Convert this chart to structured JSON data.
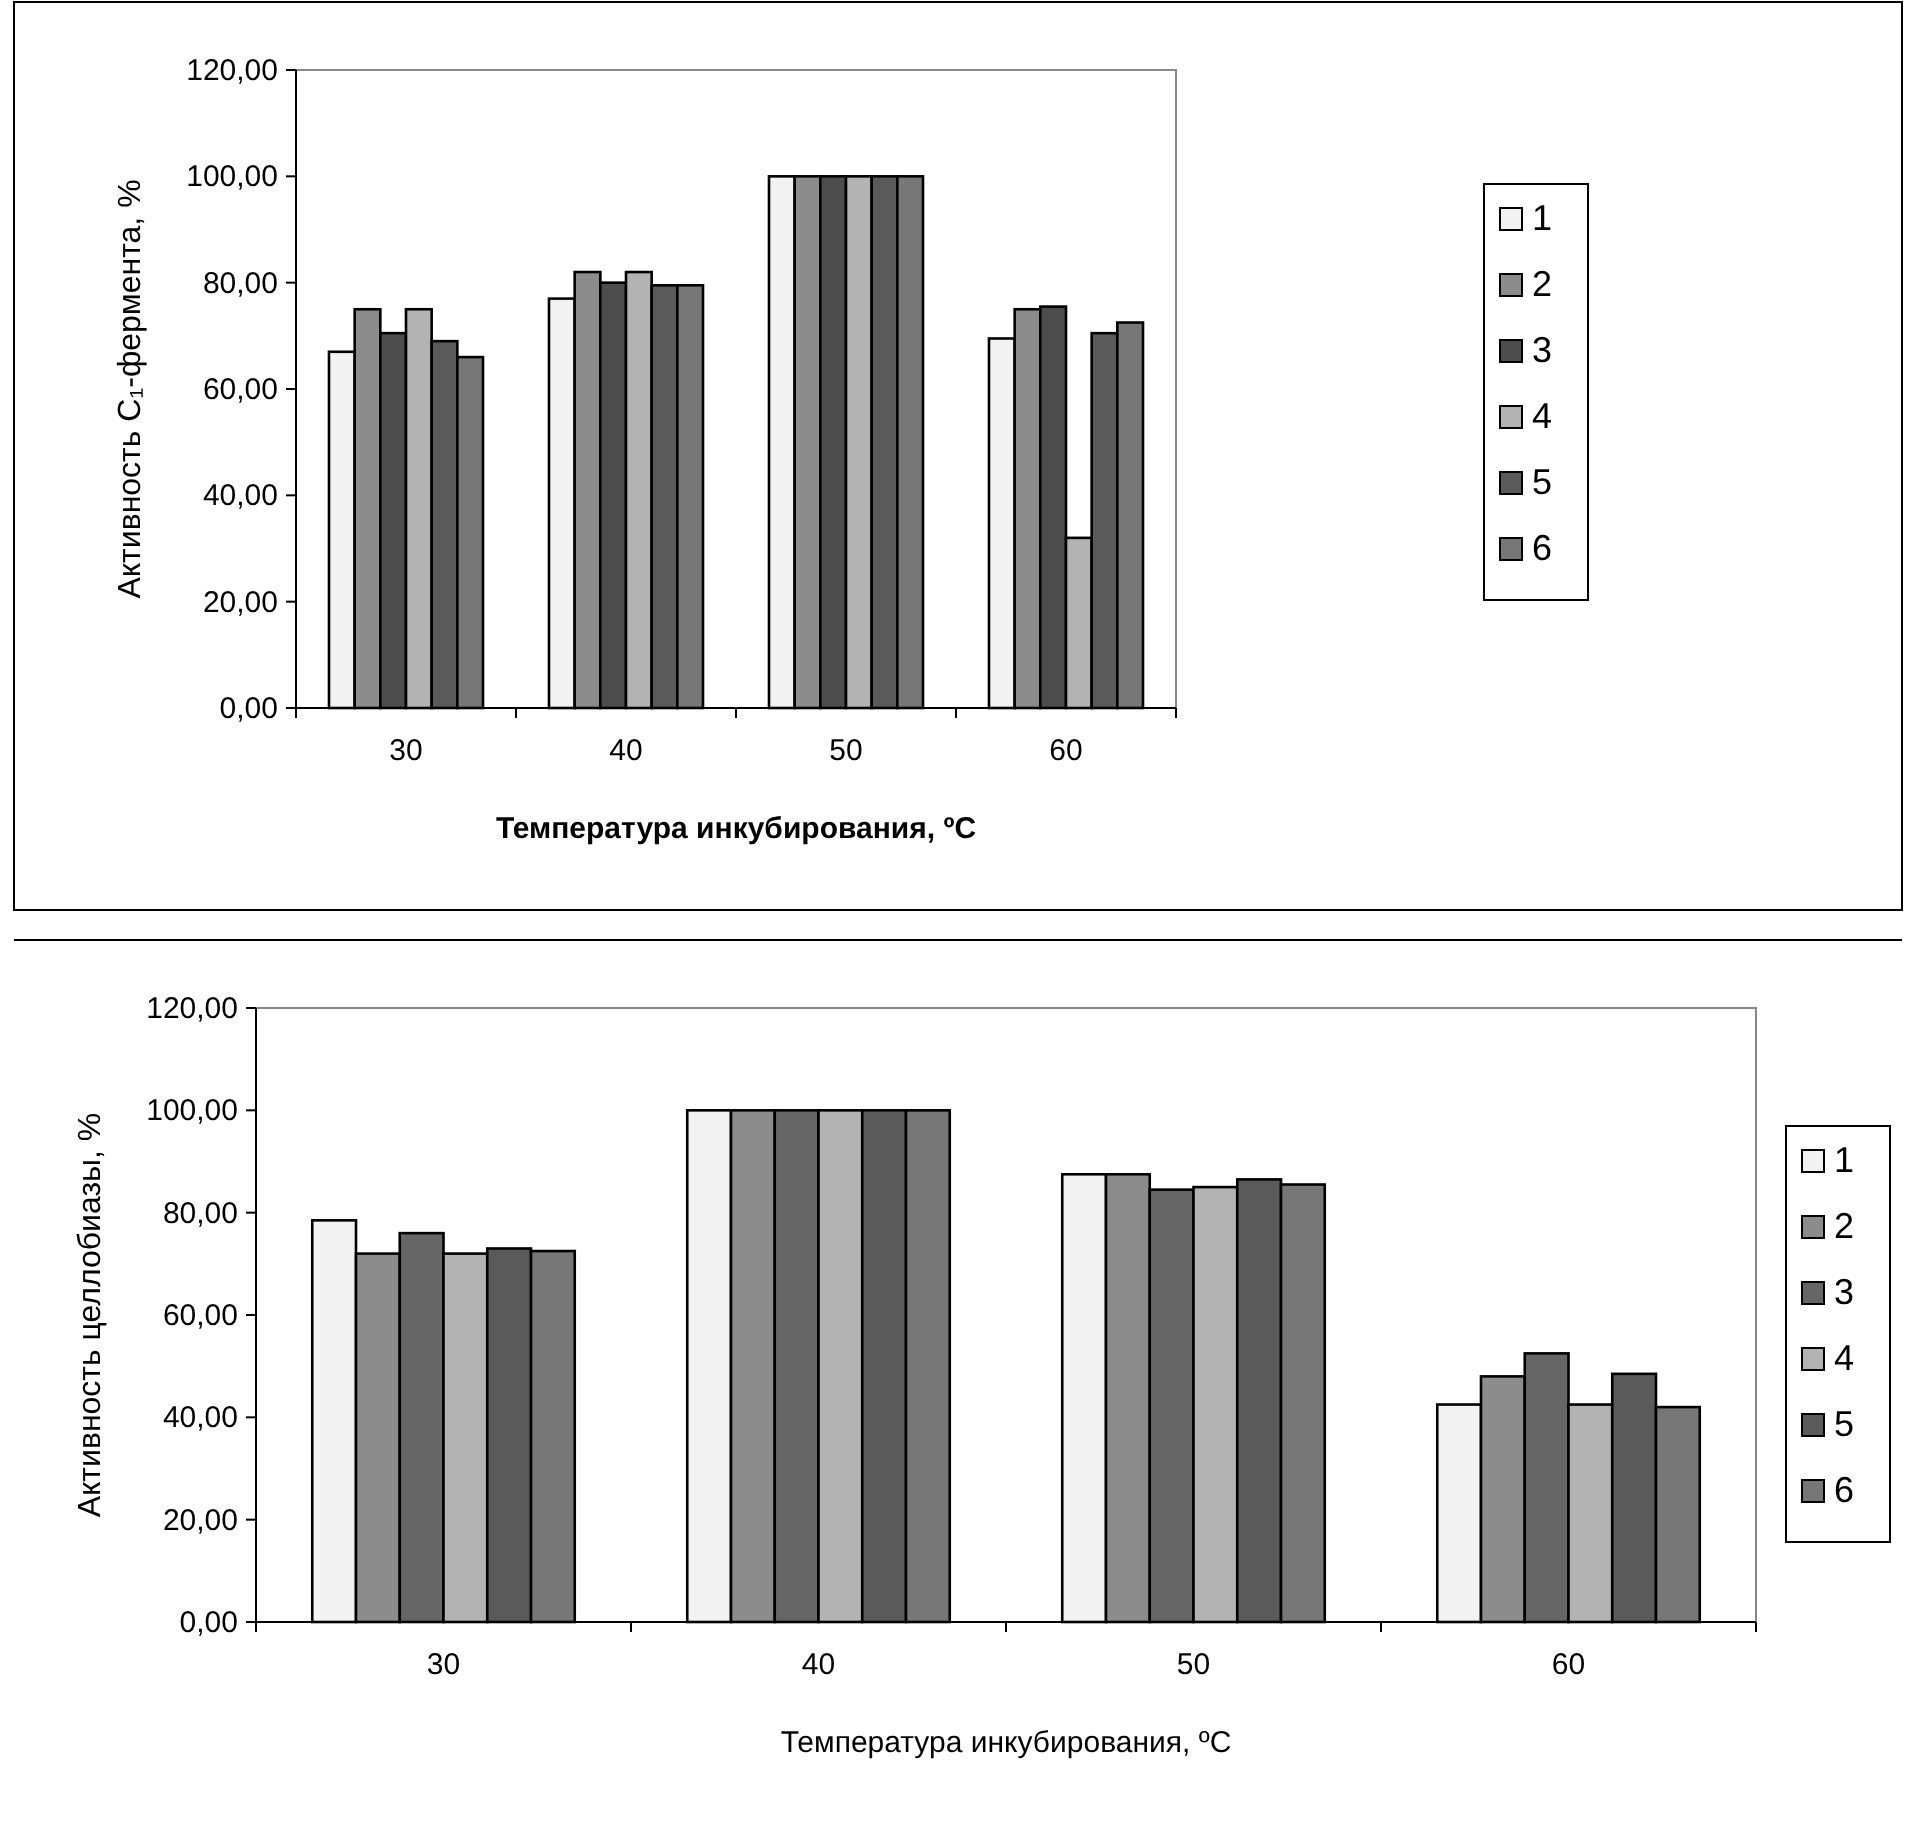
{
  "chart_data": [
    {
      "type": "bar",
      "ylabel": "Активность C₁-фермента, %",
      "xlabel": "Температура инкубирования, ºC",
      "categories": [
        "30",
        "40",
        "50",
        "60"
      ],
      "series": [
        {
          "name": "1",
          "color": "#f2f2f2",
          "values": [
            67,
            77,
            100,
            69.5
          ]
        },
        {
          "name": "2",
          "color": "#8c8c8c",
          "values": [
            75,
            82,
            100,
            75
          ]
        },
        {
          "name": "3",
          "color": "#4d4d4d",
          "values": [
            70.5,
            80,
            100,
            75.5
          ]
        },
        {
          "name": "4",
          "color": "#b3b3b3",
          "values": [
            75,
            82,
            100,
            32
          ]
        },
        {
          "name": "5",
          "color": "#5a5a5a",
          "values": [
            69,
            79.5,
            100,
            70.5
          ]
        },
        {
          "name": "6",
          "color": "#777777",
          "values": [
            66,
            79.5,
            100,
            72.5
          ]
        }
      ],
      "ylim": [
        0,
        120
      ],
      "yticks": [
        {
          "value": 0,
          "label": "0,00"
        },
        {
          "value": 20,
          "label": "20,00"
        },
        {
          "value": 40,
          "label": "40,00"
        },
        {
          "value": 60,
          "label": "60,00"
        },
        {
          "value": 80,
          "label": "80,00"
        },
        {
          "value": 100,
          "label": "100,00"
        },
        {
          "value": 120,
          "label": "120,00"
        }
      ],
      "legend": "right"
    },
    {
      "type": "bar",
      "ylabel": "Активность целлобиазы, %",
      "xlabel": "Температура инкубирования, ºC",
      "categories": [
        "30",
        "40",
        "50",
        "60"
      ],
      "series": [
        {
          "name": "1",
          "color": "#f2f2f2",
          "values": [
            78.5,
            100,
            87.5,
            42.5
          ]
        },
        {
          "name": "2",
          "color": "#8c8c8c",
          "values": [
            72,
            100,
            87.5,
            48
          ]
        },
        {
          "name": "3",
          "color": "#666666",
          "values": [
            76,
            100,
            84.5,
            52.5
          ]
        },
        {
          "name": "4",
          "color": "#b3b3b3",
          "values": [
            72,
            100,
            85,
            42.5
          ]
        },
        {
          "name": "5",
          "color": "#5a5a5a",
          "values": [
            73,
            100,
            86.5,
            48.5
          ]
        },
        {
          "name": "6",
          "color": "#777777",
          "values": [
            72.5,
            100,
            85.5,
            42
          ]
        }
      ],
      "ylim": [
        0,
        120
      ],
      "yticks": [
        {
          "value": 0,
          "label": "0,00"
        },
        {
          "value": 20,
          "label": "20,00"
        },
        {
          "value": 40,
          "label": "40,00"
        },
        {
          "value": 60,
          "label": "60,00"
        },
        {
          "value": 80,
          "label": "80,00"
        },
        {
          "value": 100,
          "label": "100,00"
        },
        {
          "value": 120,
          "label": "120,00"
        }
      ],
      "legend": "right"
    }
  ]
}
